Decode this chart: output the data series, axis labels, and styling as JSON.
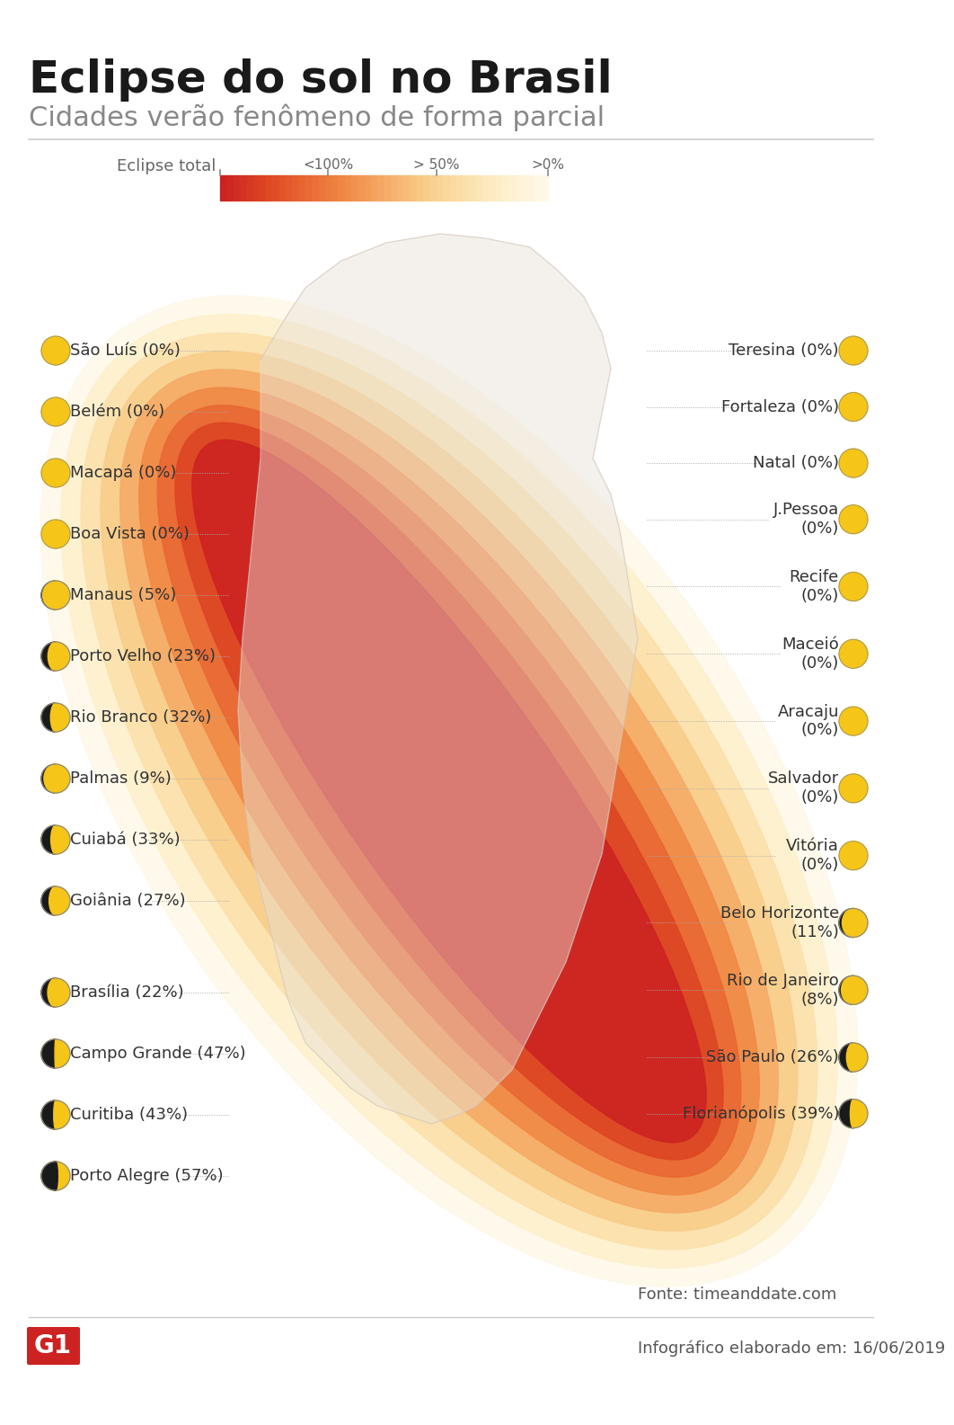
{
  "title": "Eclipse do sol no Brasil",
  "subtitle": "Cidades verão fenômeno de forma parcial",
  "bg_color": "#ffffff",
  "title_color": "#1a1a1a",
  "subtitle_color": "#888888",
  "footer_source": "Fonte: timeanddate.com",
  "footer_date": "Infográfico elaborado em: 16/06/2019",
  "g1_color": "#cc2222",
  "legend_labels": [
    "Eclipse total",
    "<100%",
    "> 50%",
    ">0%"
  ],
  "left_cities": [
    {
      "name": "São Luís (0%)",
      "pct": 0,
      "moon_phase": 0.0
    },
    {
      "name": "Belém (0%)",
      "pct": 0,
      "moon_phase": 0.0
    },
    {
      "name": "Macapá (0%)",
      "pct": 0,
      "moon_phase": 0.0
    },
    {
      "name": "Boa Vista (0%)",
      "pct": 0,
      "moon_phase": 0.0
    },
    {
      "name": "Manaus (5%)",
      "pct": 5,
      "moon_phase": 0.05
    },
    {
      "name": "Porto Velho (23%)",
      "pct": 23,
      "moon_phase": 0.23
    },
    {
      "name": "Rio Branco (32%)",
      "pct": 32,
      "moon_phase": 0.32
    },
    {
      "name": "Palmas (9%)",
      "pct": 9,
      "moon_phase": 0.09
    },
    {
      "name": "Cuiabá (33%)",
      "pct": 33,
      "moon_phase": 0.33
    },
    {
      "name": "Goiânia (27%)",
      "pct": 27,
      "moon_phase": 0.27
    },
    {
      "name": "",
      "pct": 0,
      "moon_phase": 0.0
    },
    {
      "name": "Brasília (22%)",
      "pct": 22,
      "moon_phase": 0.22
    },
    {
      "name": "Campo Grande (47%)",
      "pct": 47,
      "moon_phase": 0.47
    },
    {
      "name": "Curitiba (43%)",
      "pct": 43,
      "moon_phase": 0.43
    },
    {
      "name": "Porto Alegre (57%)",
      "pct": 57,
      "moon_phase": 0.57
    }
  ],
  "right_cities": [
    {
      "name": "Teresina (0%)",
      "pct": 0,
      "moon_phase": 0.0
    },
    {
      "name": "Fortaleza (0%)",
      "pct": 0,
      "moon_phase": 0.0
    },
    {
      "name": "Natal (0%)",
      "pct": 0,
      "moon_phase": 0.0
    },
    {
      "name": "J.Pessoa\n(0%)",
      "pct": 0,
      "moon_phase": 0.0
    },
    {
      "name": "Recife\n(0%)",
      "pct": 0,
      "moon_phase": 0.0
    },
    {
      "name": "Maceió\n(0%)",
      "pct": 0,
      "moon_phase": 0.0
    },
    {
      "name": "Aracaju\n(0%)",
      "pct": 0,
      "moon_phase": 0.0
    },
    {
      "name": "Salvador\n(0%)",
      "pct": 0,
      "moon_phase": 0.0
    },
    {
      "name": "Vitória\n(0%)",
      "pct": 0,
      "moon_phase": 0.0
    },
    {
      "name": "Belo Horizonte\n(11%)",
      "pct": 11,
      "moon_phase": 0.11
    },
    {
      "name": "Rio de Janeiro\n(8%)",
      "pct": 8,
      "moon_phase": 0.08
    },
    {
      "name": "São Paulo (26%)",
      "pct": 26,
      "moon_phase": 0.26
    },
    {
      "name": "Florianópolis (39%)",
      "pct": 39,
      "moon_phase": 0.39
    }
  ],
  "eclipse_band_colors": [
    "#cc2222",
    "#dd4422",
    "#e86633",
    "#f08844",
    "#f5aa66",
    "#f8cc88",
    "#fbe0aa",
    "#fdf0cc",
    "#fef8e8"
  ],
  "map_bg_outer": "#fef3cc",
  "map_bg_inner": "#f5e0a0"
}
